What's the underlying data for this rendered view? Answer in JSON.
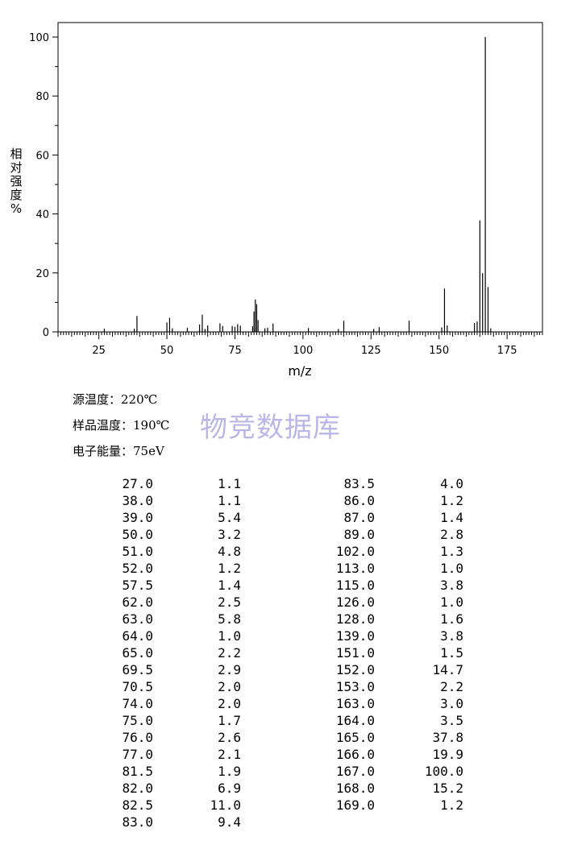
{
  "chart_data": {
    "type": "bar",
    "xlabel": "m/z",
    "ylabel_chars": [
      "相",
      "对",
      "强",
      "度",
      "%"
    ],
    "ylim": [
      0,
      100
    ],
    "xlim": [
      10,
      188
    ],
    "yticks": [
      0,
      20,
      40,
      60,
      80,
      100
    ],
    "xticks": [
      25,
      50,
      75,
      100,
      125,
      150,
      175
    ],
    "peaks": [
      {
        "mz": 27.0,
        "abundance": 1.1
      },
      {
        "mz": 38.0,
        "abundance": 1.1
      },
      {
        "mz": 39.0,
        "abundance": 5.4
      },
      {
        "mz": 50.0,
        "abundance": 3.2
      },
      {
        "mz": 51.0,
        "abundance": 4.8
      },
      {
        "mz": 52.0,
        "abundance": 1.2
      },
      {
        "mz": 57.5,
        "abundance": 1.4
      },
      {
        "mz": 62.0,
        "abundance": 2.5
      },
      {
        "mz": 63.0,
        "abundance": 5.8
      },
      {
        "mz": 64.0,
        "abundance": 1.0
      },
      {
        "mz": 65.0,
        "abundance": 2.2
      },
      {
        "mz": 69.5,
        "abundance": 2.9
      },
      {
        "mz": 70.5,
        "abundance": 2.0
      },
      {
        "mz": 74.0,
        "abundance": 2.0
      },
      {
        "mz": 75.0,
        "abundance": 1.7
      },
      {
        "mz": 76.0,
        "abundance": 2.6
      },
      {
        "mz": 77.0,
        "abundance": 2.1
      },
      {
        "mz": 81.5,
        "abundance": 1.9
      },
      {
        "mz": 82.0,
        "abundance": 6.9
      },
      {
        "mz": 82.5,
        "abundance": 11.0
      },
      {
        "mz": 83.0,
        "abundance": 9.4
      },
      {
        "mz": 83.5,
        "abundance": 4.0
      },
      {
        "mz": 86.0,
        "abundance": 1.2
      },
      {
        "mz": 87.0,
        "abundance": 1.4
      },
      {
        "mz": 89.0,
        "abundance": 2.8
      },
      {
        "mz": 102.0,
        "abundance": 1.3
      },
      {
        "mz": 113.0,
        "abundance": 1.0
      },
      {
        "mz": 115.0,
        "abundance": 3.8
      },
      {
        "mz": 126.0,
        "abundance": 1.0
      },
      {
        "mz": 128.0,
        "abundance": 1.6
      },
      {
        "mz": 139.0,
        "abundance": 3.8
      },
      {
        "mz": 151.0,
        "abundance": 1.5
      },
      {
        "mz": 152.0,
        "abundance": 14.7
      },
      {
        "mz": 153.0,
        "abundance": 2.2
      },
      {
        "mz": 163.0,
        "abundance": 3.0
      },
      {
        "mz": 164.0,
        "abundance": 3.5
      },
      {
        "mz": 165.0,
        "abundance": 37.8
      },
      {
        "mz": 166.0,
        "abundance": 19.9
      },
      {
        "mz": 167.0,
        "abundance": 100.0
      },
      {
        "mz": 168.0,
        "abundance": 15.2
      },
      {
        "mz": 169.0,
        "abundance": 1.2
      }
    ]
  },
  "conditions": {
    "source_temp": "源温度：220℃",
    "sample_temp": "样品温度：190℃",
    "electron_energy": "电子能量：75eV"
  },
  "watermark": "物竞数据库",
  "table": {
    "col1": [
      [
        "27.0",
        "1.1"
      ],
      [
        "38.0",
        "1.1"
      ],
      [
        "39.0",
        "5.4"
      ],
      [
        "50.0",
        "3.2"
      ],
      [
        "51.0",
        "4.8"
      ],
      [
        "52.0",
        "1.2"
      ],
      [
        "57.5",
        "1.4"
      ],
      [
        "62.0",
        "2.5"
      ],
      [
        "63.0",
        "5.8"
      ],
      [
        "64.0",
        "1.0"
      ],
      [
        "65.0",
        "2.2"
      ],
      [
        "69.5",
        "2.9"
      ],
      [
        "70.5",
        "2.0"
      ],
      [
        "74.0",
        "2.0"
      ],
      [
        "75.0",
        "1.7"
      ],
      [
        "76.0",
        "2.6"
      ],
      [
        "77.0",
        "2.1"
      ],
      [
        "81.5",
        "1.9"
      ],
      [
        "82.0",
        "6.9"
      ],
      [
        "82.5",
        "11.0"
      ],
      [
        "83.0",
        "9.4"
      ]
    ],
    "col2": [
      [
        "83.5",
        "4.0"
      ],
      [
        "86.0",
        "1.2"
      ],
      [
        "87.0",
        "1.4"
      ],
      [
        "89.0",
        "2.8"
      ],
      [
        "102.0",
        "1.3"
      ],
      [
        "113.0",
        "1.0"
      ],
      [
        "115.0",
        "3.8"
      ],
      [
        "126.0",
        "1.0"
      ],
      [
        "128.0",
        "1.6"
      ],
      [
        "139.0",
        "3.8"
      ],
      [
        "151.0",
        "1.5"
      ],
      [
        "152.0",
        "14.7"
      ],
      [
        "153.0",
        "2.2"
      ],
      [
        "163.0",
        "3.0"
      ],
      [
        "164.0",
        "3.5"
      ],
      [
        "165.0",
        "37.8"
      ],
      [
        "166.0",
        "19.9"
      ],
      [
        "167.0",
        "100.0"
      ],
      [
        "168.0",
        "15.2"
      ],
      [
        "169.0",
        "1.2"
      ]
    ]
  }
}
